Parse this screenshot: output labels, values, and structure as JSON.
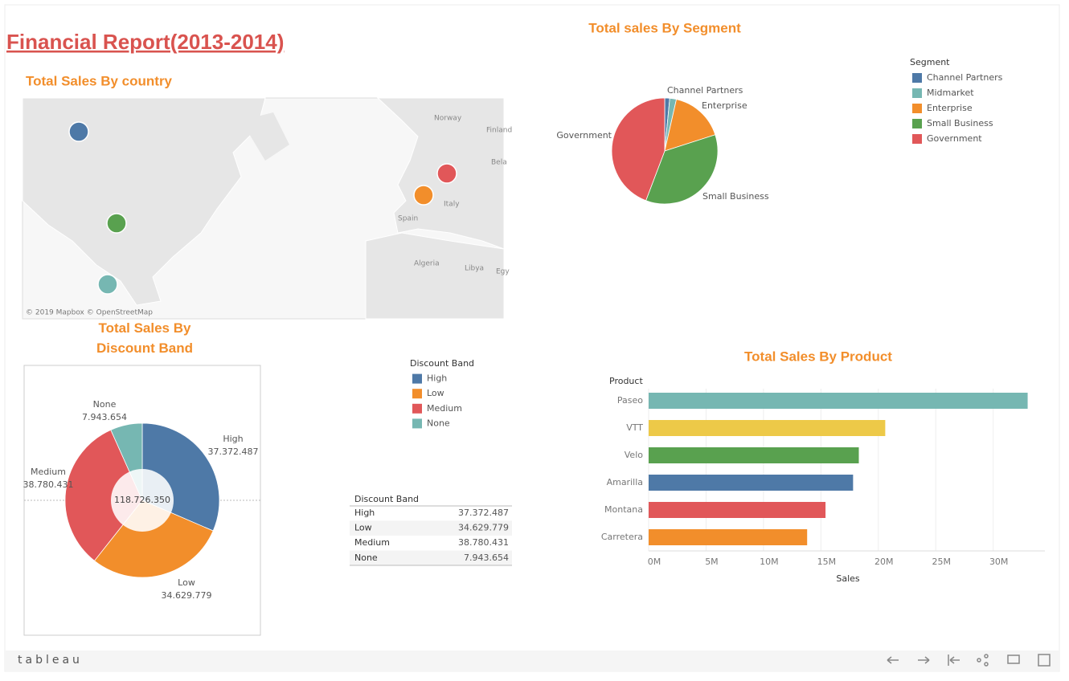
{
  "title": "Financial Report(2013-2014)",
  "chart_data": [
    {
      "type": "map",
      "title": "Total Sales By country",
      "labels": [
        "Norway",
        "Finland",
        "Spain",
        "Italy",
        "Algeria",
        "Libya",
        "Bela",
        "Egy"
      ],
      "attribution": "© 2019 Mapbox © OpenStreetMap"
    },
    {
      "type": "pie",
      "title": "Total sales By Segment",
      "legend_title": "Segment",
      "categories": [
        "Channel Partners",
        "Midmarket",
        "Enterprise",
        "Small Business",
        "Government"
      ],
      "values": [
        1800000,
        2400000,
        19600000,
        42400000,
        52500000
      ],
      "colors": [
        "#4e79a7",
        "#76b7b2",
        "#f28e2b",
        "#59a14f",
        "#e15759"
      ],
      "labeled": [
        true,
        false,
        true,
        true,
        true
      ]
    },
    {
      "type": "donut",
      "title": "Total Sales By Discount Band",
      "legend_title": "Discount Band",
      "categories": [
        "High",
        "Low",
        "Medium",
        "None"
      ],
      "values": [
        37372487,
        34629779,
        38780431,
        7943654
      ],
      "value_labels": [
        "37.372.487",
        "34.629.779",
        "38.780.431",
        "7.943.654"
      ],
      "colors": [
        "#4e79a7",
        "#f28e2b",
        "#e15759",
        "#76b7b2"
      ],
      "center": {
        "value": 118726350,
        "label": "118.726.350"
      }
    },
    {
      "type": "hbar",
      "title": "Total Sales By Product",
      "y_label": "Product",
      "x_label": "Sales",
      "categories": [
        "Paseo",
        "VTT",
        "Velo",
        "Amarilla",
        "Montana",
        "Carretera"
      ],
      "values": [
        33000000,
        20600000,
        18300000,
        17800000,
        15400000,
        13800000
      ],
      "colors": [
        "#76b7b2",
        "#edc948",
        "#59a14f",
        "#4e79a7",
        "#e15759",
        "#f28e2b"
      ],
      "xlim": [
        0,
        34500000
      ],
      "xticks": [
        {
          "value": 0,
          "label": "0M"
        },
        {
          "value": 5000000,
          "label": "5M"
        },
        {
          "value": 10000000,
          "label": "10M"
        },
        {
          "value": 15000000,
          "label": "15M"
        },
        {
          "value": 20000000,
          "label": "20M"
        },
        {
          "value": 25000000,
          "label": "25M"
        },
        {
          "value": 30000000,
          "label": "30M"
        }
      ],
      "grid": true
    }
  ],
  "footer": {
    "brand": "tableau"
  }
}
